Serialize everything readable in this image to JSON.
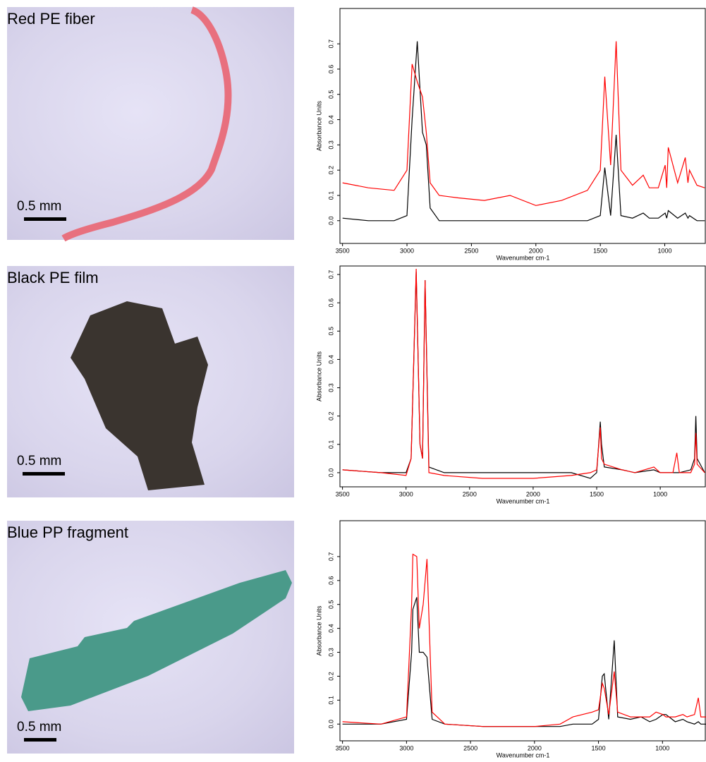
{
  "photos": [
    {
      "label": "Red PE fiber",
      "scale": "0.5 mm"
    },
    {
      "label": "Black PE film",
      "scale": "0.5 mm"
    },
    {
      "label": "Blue PP fragment",
      "scale": "0.5 mm"
    }
  ],
  "chart_data": [
    {
      "type": "line",
      "ylabel": "Absorbance Units",
      "xlabel": "Wavenumber cm-1",
      "x": [
        3500,
        3300,
        3100,
        3000,
        2960,
        2920,
        2880,
        2850,
        2820,
        2750,
        2600,
        2400,
        2200,
        2000,
        1800,
        1600,
        1500,
        1465,
        1420,
        1377,
        1340,
        1250,
        1167,
        1120,
        1050,
        997,
        985,
        973,
        900,
        841,
        820,
        808,
        750,
        690
      ],
      "series": [
        {
          "color": "#000000",
          "values": [
            0.01,
            0.0,
            0.0,
            0.02,
            0.4,
            0.71,
            0.35,
            0.3,
            0.05,
            0.0,
            0.0,
            0.0,
            0.0,
            0.0,
            0.0,
            0.0,
            0.02,
            0.21,
            0.02,
            0.34,
            0.02,
            0.01,
            0.03,
            0.01,
            0.01,
            0.03,
            0.01,
            0.04,
            0.01,
            0.03,
            0.01,
            0.02,
            0.0,
            0.0
          ]
        },
        {
          "color": "#ff0000",
          "values": [
            0.15,
            0.13,
            0.12,
            0.2,
            0.62,
            0.55,
            0.49,
            0.35,
            0.15,
            0.1,
            0.09,
            0.08,
            0.1,
            0.06,
            0.08,
            0.12,
            0.2,
            0.57,
            0.22,
            0.71,
            0.2,
            0.14,
            0.18,
            0.13,
            0.13,
            0.22,
            0.13,
            0.29,
            0.15,
            0.25,
            0.15,
            0.2,
            0.14,
            0.13
          ]
        }
      ],
      "xlim": [
        3520,
        680
      ],
      "ylim": [
        -0.09,
        0.84
      ],
      "xticks": [
        3500,
        3000,
        2500,
        2000,
        1500,
        1000
      ],
      "yticks": [
        {
          "value": 0,
          "label": "0.0"
        },
        0.1,
        0.2,
        0.3,
        0.4,
        0.5,
        0.6,
        0.7
      ]
    },
    {
      "type": "line",
      "ylabel": "Absorbance Units",
      "xlabel": "Wavenumber cm-1",
      "x": [
        3500,
        3200,
        3000,
        2960,
        2920,
        2890,
        2870,
        2850,
        2820,
        2700,
        2400,
        2000,
        1700,
        1550,
        1500,
        1472,
        1462,
        1440,
        1300,
        1200,
        1050,
        1000,
        900,
        870,
        850,
        760,
        730,
        720,
        710,
        650
      ],
      "series": [
        {
          "color": "#000000",
          "values": [
            0.01,
            0.0,
            0.0,
            0.05,
            0.71,
            0.1,
            0.05,
            0.68,
            0.02,
            0.0,
            0.0,
            0.0,
            0.0,
            -0.02,
            0.0,
            0.18,
            0.1,
            0.02,
            0.01,
            0.0,
            0.01,
            0.0,
            0.0,
            0.0,
            0.0,
            0.01,
            0.05,
            0.2,
            0.05,
            0.0
          ]
        },
        {
          "color": "#ff0000",
          "values": [
            0.01,
            0.0,
            -0.01,
            0.05,
            0.72,
            0.1,
            0.05,
            0.68,
            0.0,
            -0.01,
            -0.02,
            -0.02,
            -0.01,
            0.0,
            0.01,
            0.16,
            0.05,
            0.03,
            0.01,
            0.0,
            0.02,
            0.0,
            0.0,
            0.07,
            0.0,
            0.0,
            0.03,
            0.14,
            0.03,
            0.0
          ]
        }
      ],
      "xlim": [
        3520,
        640
      ],
      "ylim": [
        -0.05,
        0.73
      ],
      "xticks": [
        3500,
        3000,
        2500,
        2000,
        1500,
        1000
      ],
      "yticks": [
        {
          "value": 0,
          "label": "0.0"
        },
        0.1,
        0.2,
        0.3,
        0.4,
        0.5,
        0.6,
        0.7
      ]
    },
    {
      "type": "line",
      "ylabel": "Absorbance Units",
      "xlabel": "Wavenumber cm-1",
      "x": [
        3500,
        3200,
        3000,
        2960,
        2950,
        2920,
        2900,
        2870,
        2840,
        2800,
        2700,
        2400,
        2000,
        1800,
        1700,
        1550,
        1500,
        1470,
        1455,
        1420,
        1377,
        1350,
        1250,
        1167,
        1100,
        1050,
        997,
        973,
        900,
        841,
        808,
        750,
        720,
        700,
        660
      ],
      "series": [
        {
          "color": "#000000",
          "values": [
            0.0,
            0.0,
            0.02,
            0.3,
            0.48,
            0.53,
            0.3,
            0.3,
            0.28,
            0.02,
            0.0,
            -0.01,
            -0.01,
            -0.01,
            0.0,
            0.0,
            0.02,
            0.2,
            0.21,
            0.02,
            0.35,
            0.03,
            0.02,
            0.03,
            0.01,
            0.02,
            0.04,
            0.04,
            0.01,
            0.02,
            0.01,
            0.0,
            0.01,
            0.0,
            0.0
          ]
        },
        {
          "color": "#ff0000",
          "values": [
            0.01,
            0.0,
            0.03,
            0.5,
            0.71,
            0.7,
            0.4,
            0.5,
            0.69,
            0.05,
            0.0,
            -0.01,
            -0.01,
            0.0,
            0.03,
            0.05,
            0.06,
            0.17,
            0.15,
            0.04,
            0.22,
            0.05,
            0.03,
            0.03,
            0.03,
            0.05,
            0.04,
            0.03,
            0.03,
            0.04,
            0.03,
            0.04,
            0.11,
            0.03,
            0.03
          ]
        }
      ],
      "xlim": [
        3520,
        660
      ],
      "ylim": [
        -0.07,
        0.85
      ],
      "xticks": [
        3500,
        3000,
        2500,
        2000,
        1500,
        1000
      ],
      "yticks": [
        {
          "value": 0,
          "label": "0.0"
        },
        0.1,
        0.2,
        0.3,
        0.4,
        0.5,
        0.6,
        0.7
      ]
    }
  ]
}
